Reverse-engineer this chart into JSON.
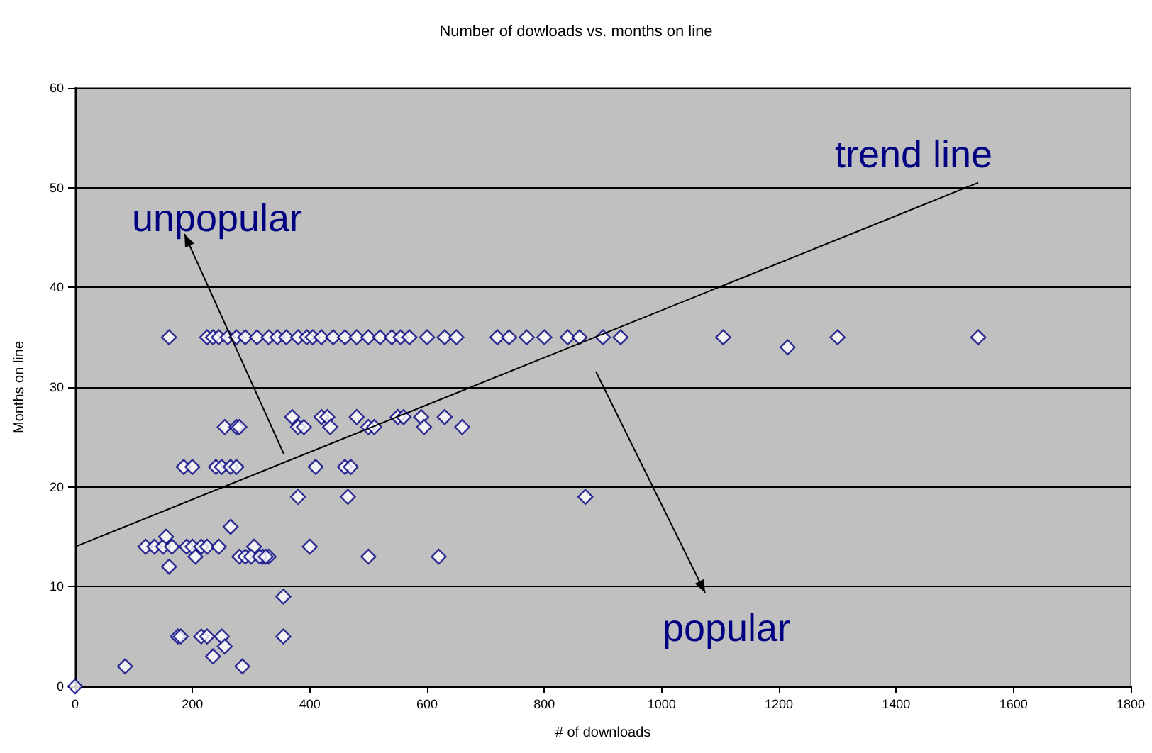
{
  "chart_data": {
    "type": "scatter",
    "title": "Number of dowloads vs. months on line",
    "xlabel": "# of downloads",
    "ylabel": "Months on line",
    "xlim": [
      0,
      1800
    ],
    "xticks": [
      0,
      200,
      400,
      600,
      800,
      1000,
      1200,
      1400,
      1600,
      1800
    ],
    "ylim": [
      0,
      60
    ],
    "yticks": [
      0,
      10,
      20,
      30,
      40,
      50,
      60
    ],
    "grid": "y",
    "marker": "diamond",
    "annotations": [
      "trend line",
      "unpopular",
      "popular"
    ],
    "series": [
      {
        "color": "#000080",
        "x": [
          160,
          225,
          235,
          245,
          260,
          275,
          290,
          310,
          330,
          345,
          360,
          380,
          395,
          405,
          420,
          440,
          460,
          480,
          500,
          520,
          540,
          555,
          570,
          600,
          630,
          650,
          720,
          740,
          770,
          800,
          840,
          860,
          900,
          930,
          1105,
          1300,
          1540,
          1215,
          255,
          275,
          280,
          370,
          380,
          390,
          420,
          430,
          435,
          480,
          500,
          510,
          550,
          560,
          590,
          595,
          630,
          660,
          185,
          200,
          240,
          250,
          265,
          275,
          410,
          460,
          470,
          380,
          465,
          870,
          120,
          135,
          150,
          155,
          165,
          190,
          200,
          215,
          225,
          245,
          305,
          320,
          330,
          400,
          265,
          160,
          205,
          280,
          290,
          300,
          315,
          325,
          500,
          620,
          175,
          180,
          215,
          225,
          250,
          355,
          355,
          255,
          235,
          85,
          285,
          0
        ],
        "values": [
          35,
          35,
          35,
          35,
          35,
          35,
          35,
          35,
          35,
          35,
          35,
          35,
          35,
          35,
          35,
          35,
          35,
          35,
          35,
          35,
          35,
          35,
          35,
          35,
          35,
          35,
          35,
          35,
          35,
          35,
          35,
          35,
          35,
          35,
          35,
          35,
          35,
          34,
          26,
          26,
          26,
          27,
          26,
          26,
          27,
          27,
          26,
          27,
          26,
          26,
          27,
          27,
          27,
          26,
          27,
          26,
          22,
          22,
          22,
          22,
          22,
          22,
          22,
          22,
          22,
          19,
          19,
          19,
          14,
          14,
          14,
          15,
          14,
          14,
          14,
          14,
          14,
          14,
          14,
          13,
          13,
          14,
          16,
          12,
          13,
          13,
          13,
          13,
          13,
          13,
          13,
          13,
          5,
          5,
          5,
          5,
          5,
          5,
          9,
          4,
          3,
          2,
          2,
          0
        ]
      },
      {
        "type": "line",
        "color": "#000000",
        "marker": "none",
        "x": [
          0,
          1540
        ],
        "values": [
          14,
          50.5
        ]
      }
    ]
  }
}
